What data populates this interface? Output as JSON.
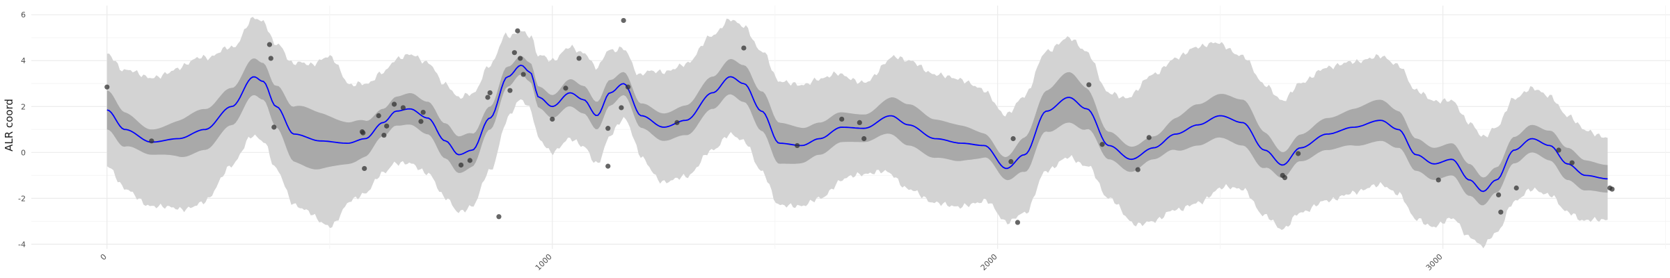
{
  "chart_data": {
    "type": "line",
    "title": "",
    "xlabel": "",
    "ylabel": "ALR coord",
    "xlim": [
      -170,
      3510
    ],
    "ylim": [
      -4.2,
      6.4
    ],
    "x_ticks": [
      0,
      1000,
      2000,
      3000
    ],
    "x_tick_labels": [
      "0",
      "1000",
      "2000",
      "3000"
    ],
    "y_ticks": [
      -4,
      -2,
      0,
      2,
      4,
      6
    ],
    "y_tick_labels": [
      "-4",
      "-2",
      "0",
      "2",
      "4",
      "6"
    ],
    "grid": true,
    "legend": "none",
    "colors": {
      "mean_line": "#0000ff",
      "inner_band": "#a9a9a9",
      "outer_band": "#d3d3d3",
      "points": "#333333",
      "grid_major": "#ebebeb",
      "grid_minor": "#f5f5f5"
    },
    "series": [
      {
        "kind": "mean",
        "x": [
          0,
          40,
          100,
          160,
          220,
          280,
          330,
          350,
          380,
          420,
          480,
          540,
          580,
          620,
          650,
          680,
          720,
          760,
          790,
          820,
          860,
          900,
          930,
          950,
          970,
          1000,
          1040,
          1070,
          1100,
          1130,
          1160,
          1200,
          1250,
          1300,
          1360,
          1400,
          1430,
          1470,
          1510,
          1560,
          1600,
          1650,
          1700,
          1760,
          1800,
          1860,
          1920,
          1970,
          2020,
          2060,
          2110,
          2160,
          2200,
          2250,
          2300,
          2350,
          2400,
          2450,
          2500,
          2550,
          2600,
          2640,
          2680,
          2740,
          2800,
          2860,
          2900,
          2940,
          2980,
          3020,
          3060,
          3090,
          3120,
          3160,
          3200,
          3240,
          3280,
          3320,
          3370
        ],
        "y": [
          1.85,
          1.0,
          0.45,
          0.6,
          1.0,
          2.0,
          3.3,
          3.1,
          2.0,
          0.8,
          0.5,
          0.4,
          0.6,
          1.3,
          1.8,
          1.9,
          1.5,
          0.5,
          -0.1,
          0.1,
          1.5,
          3.3,
          3.8,
          3.5,
          2.4,
          2.0,
          2.6,
          2.3,
          1.6,
          2.6,
          3.0,
          1.6,
          1.1,
          1.4,
          2.6,
          3.3,
          3.0,
          1.8,
          0.4,
          0.3,
          0.6,
          1.1,
          1.05,
          1.6,
          1.2,
          0.6,
          0.4,
          0.3,
          -0.7,
          -0.1,
          1.8,
          2.4,
          1.9,
          0.3,
          -0.3,
          0.2,
          0.8,
          1.2,
          1.6,
          1.3,
          0.1,
          -0.55,
          0.2,
          0.8,
          1.1,
          1.4,
          1.0,
          -0.1,
          -0.5,
          -0.3,
          -1.2,
          -1.7,
          -1.2,
          0.1,
          0.6,
          0.3,
          -0.5,
          -1.0,
          -1.15
        ]
      },
      {
        "kind": "band_inner_half_width",
        "x": [
          0,
          100,
          200,
          300,
          350,
          450,
          550,
          620,
          700,
          800,
          860,
          930,
          1000,
          1050,
          1100,
          1170,
          1250,
          1350,
          1430,
          1500,
          1600,
          1700,
          1800,
          1900,
          2000,
          2080,
          2160,
          2250,
          2350,
          2450,
          2550,
          2650,
          2750,
          2850,
          2950,
          3050,
          3120,
          3200,
          3280,
          3370
        ],
        "h": [
          0.85,
          0.55,
          0.9,
          0.8,
          0.8,
          1.3,
          0.9,
          0.6,
          0.7,
          0.8,
          0.5,
          0.4,
          0.5,
          0.6,
          0.6,
          0.5,
          0.6,
          0.7,
          0.8,
          0.9,
          0.7,
          0.6,
          0.9,
          0.8,
          0.45,
          0.8,
          1.1,
          0.6,
          0.5,
          0.9,
          1.0,
          0.55,
          0.7,
          0.9,
          0.7,
          0.7,
          0.55,
          0.6,
          0.7,
          0.6
        ]
      },
      {
        "kind": "band_outer_half_width",
        "x": [
          0,
          100,
          200,
          300,
          350,
          450,
          500,
          550,
          620,
          700,
          800,
          860,
          930,
          1000,
          1050,
          1100,
          1170,
          1250,
          1350,
          1430,
          1500,
          1600,
          1700,
          1800,
          1900,
          2000,
          2080,
          2160,
          2250,
          2350,
          2450,
          2550,
          2650,
          2750,
          2850,
          2950,
          3050,
          3120,
          3200,
          3280,
          3370
        ],
        "h": [
          2.45,
          2.8,
          3.2,
          2.5,
          2.6,
          3.2,
          3.7,
          2.5,
          2.2,
          2.4,
          2.5,
          2.3,
          1.5,
          2.0,
          2.0,
          2.1,
          1.5,
          2.4,
          2.5,
          2.5,
          2.7,
          2.6,
          2.0,
          2.8,
          2.8,
          2.3,
          2.6,
          2.6,
          2.3,
          3.2,
          3.4,
          2.9,
          2.8,
          2.9,
          2.8,
          2.8,
          2.5,
          2.3,
          2.2,
          2.1,
          1.8
        ]
      },
      {
        "kind": "observed_points",
        "x": [
          0,
          100,
          365,
          368,
          375,
          573,
          575,
          578,
          610,
          622,
          628,
          645,
          665,
          705,
          710,
          795,
          815,
          855,
          860,
          880,
          905,
          915,
          922,
          928,
          935,
          1000,
          1030,
          1060,
          1125,
          1125,
          1155,
          1160,
          1170,
          1280,
          1430,
          1550,
          1650,
          1690,
          1700,
          2030,
          2035,
          2045,
          2205,
          2235,
          2315,
          2340,
          2640,
          2645,
          2675,
          2990,
          3125,
          3130,
          3165,
          3260,
          3290,
          3375,
          3380
        ],
        "y": [
          2.85,
          0.5,
          4.7,
          4.1,
          1.1,
          0.9,
          0.85,
          -0.7,
          1.6,
          0.75,
          1.15,
          2.1,
          1.95,
          1.35,
          1.75,
          -0.55,
          -0.35,
          2.4,
          2.6,
          -2.8,
          2.7,
          4.35,
          5.3,
          4.1,
          3.4,
          1.45,
          2.8,
          4.1,
          1.05,
          -0.6,
          1.95,
          5.75,
          2.85,
          1.3,
          4.55,
          0.3,
          1.45,
          1.3,
          0.6,
          -0.4,
          0.6,
          -3.05,
          2.95,
          0.35,
          -0.75,
          0.65,
          -1.0,
          -1.1,
          -0.05,
          -1.2,
          -1.85,
          -2.6,
          -1.55,
          0.1,
          -0.45,
          -1.55,
          -1.6
        ]
      }
    ]
  }
}
